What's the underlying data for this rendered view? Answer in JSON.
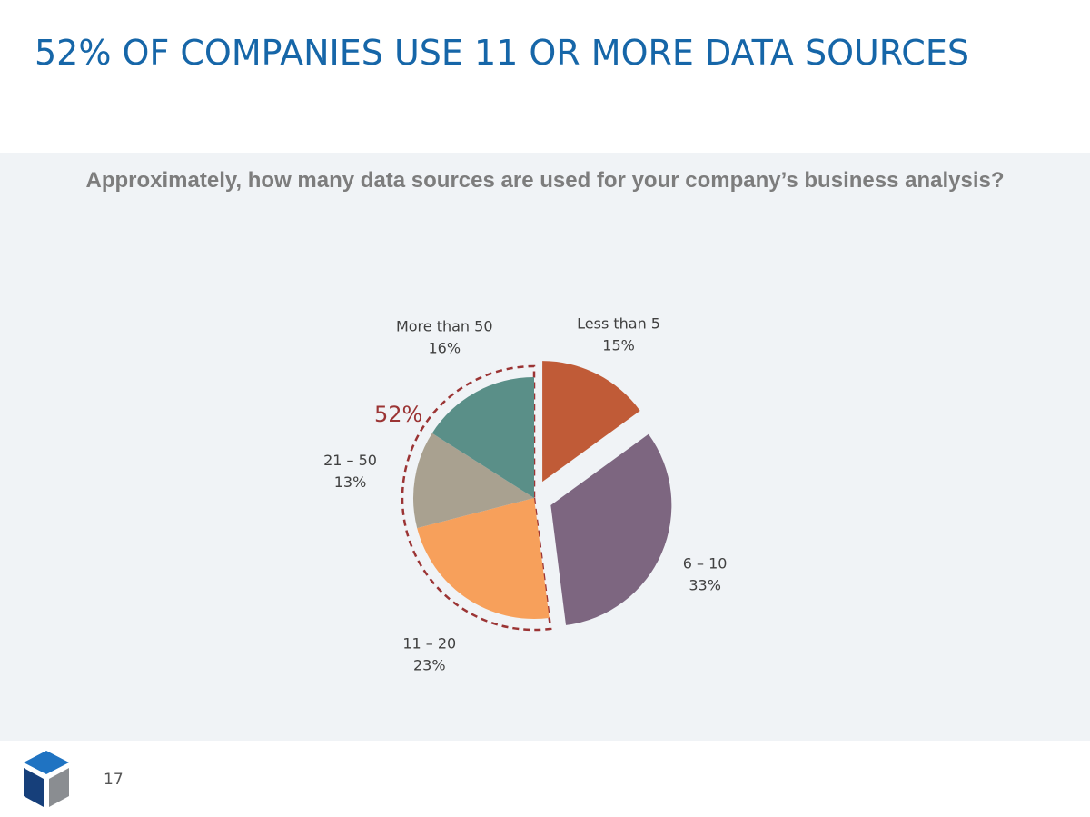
{
  "slide": {
    "title": "52% OF COMPANIES USE 11 OR MORE DATA SOURCES",
    "page_number": "17"
  },
  "colors": {
    "title": "#1666a8",
    "panel_background": "#f0f3f6",
    "question_text": "#7d7d7d",
    "bracket": "#9b3434",
    "logo_top": "#1f73c2",
    "logo_left": "#163f7a",
    "logo_right": "#8a8d91"
  },
  "chart_data": {
    "type": "pie",
    "title": "Approximately, how many data sources are used for your company’s business analysis?",
    "slices": [
      {
        "label": "Less than 5",
        "value": 15,
        "value_label": "15%",
        "color": "#c05b37",
        "exploded": true
      },
      {
        "label": "6 – 10",
        "value": 33,
        "value_label": "33%",
        "color": "#7d6680",
        "exploded": true
      },
      {
        "label": "11 – 20",
        "value": 23,
        "value_label": "23%",
        "color": "#f7a05b",
        "exploded": false
      },
      {
        "label": "21 – 50",
        "value": 13,
        "value_label": "13%",
        "color": "#a9a190",
        "exploded": false
      },
      {
        "label": "More than 50",
        "value": 16,
        "value_label": "16%",
        "color": "#5a8f88",
        "exploded": false
      }
    ],
    "start": "12 o'clock",
    "direction": "clockwise",
    "bracket": {
      "label": "52%",
      "covers": [
        "11 – 20",
        "21 – 50",
        "More than 50"
      ]
    }
  }
}
